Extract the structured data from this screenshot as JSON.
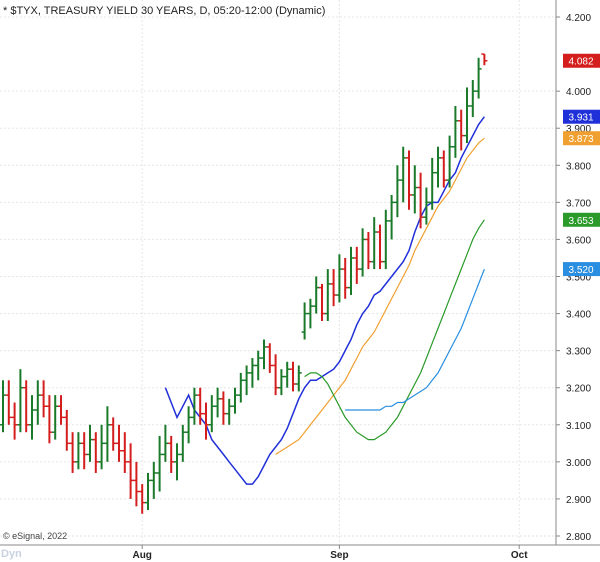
{
  "chart_data": {
    "type": "ohlc",
    "title": "* $TYX, TREASURY YIELD 30 YEARS, D, 05:20-12:00 (Dynamic)",
    "ylim": [
      2.8,
      4.2
    ],
    "y_ticks": [
      "4.200",
      "4.000",
      "3.900",
      "3.800",
      "3.700",
      "3.600",
      "3.500",
      "3.400",
      "3.300",
      "3.200",
      "3.100",
      "3.000",
      "2.900",
      "2.800"
    ],
    "x_ticks": [
      {
        "label": "Aug",
        "index": 24
      },
      {
        "label": "Sep",
        "index": 58
      },
      {
        "label": "Oct",
        "index": 89
      }
    ],
    "colors": {
      "up": "#1a7a2a",
      "down": "#d41e1e",
      "ma_blue": "#2030d8",
      "ma_orange": "#f0a030",
      "ma_green": "#2a9a2a",
      "ma_lightblue": "#2a8fe0"
    },
    "bars": [
      [
        3.1,
        3.22,
        3.08,
        3.18
      ],
      [
        3.18,
        3.22,
        3.1,
        3.12
      ],
      [
        3.12,
        3.16,
        3.06,
        3.1
      ],
      [
        3.1,
        3.25,
        3.08,
        3.2
      ],
      [
        3.2,
        3.22,
        3.08,
        3.1
      ],
      [
        3.1,
        3.18,
        3.06,
        3.14
      ],
      [
        3.14,
        3.22,
        3.1,
        3.18
      ],
      [
        3.18,
        3.22,
        3.12,
        3.15
      ],
      [
        3.15,
        3.18,
        3.05,
        3.08
      ],
      [
        3.08,
        3.18,
        3.06,
        3.15
      ],
      [
        3.15,
        3.18,
        3.1,
        3.12
      ],
      [
        3.12,
        3.14,
        3.03,
        3.05
      ],
      [
        3.05,
        3.08,
        2.97,
        3.0
      ],
      [
        3.0,
        3.08,
        2.98,
        3.05
      ],
      [
        3.05,
        3.08,
        2.98,
        3.02
      ],
      [
        3.02,
        3.1,
        3.0,
        3.06
      ],
      [
        3.06,
        3.08,
        2.97,
        3.0
      ],
      [
        3.0,
        3.1,
        2.98,
        3.05
      ],
      [
        3.05,
        3.15,
        3.0,
        3.1
      ],
      [
        3.1,
        3.12,
        3.03,
        3.05
      ],
      [
        3.05,
        3.1,
        3.0,
        3.03
      ],
      [
        3.03,
        3.08,
        2.97,
        3.0
      ],
      [
        3.0,
        3.05,
        2.9,
        2.95
      ],
      [
        2.95,
        3.0,
        2.88,
        2.92
      ],
      [
        2.92,
        2.94,
        2.86,
        2.89
      ],
      [
        2.89,
        2.97,
        2.87,
        2.95
      ],
      [
        2.95,
        3.0,
        2.9,
        2.97
      ],
      [
        2.97,
        3.07,
        2.92,
        3.02
      ],
      [
        3.02,
        3.1,
        3.0,
        3.05
      ],
      [
        3.05,
        3.07,
        2.97,
        3.0
      ],
      [
        3.0,
        3.05,
        2.95,
        3.02
      ],
      [
        3.02,
        3.1,
        3.0,
        3.08
      ],
      [
        3.08,
        3.15,
        3.05,
        3.12
      ],
      [
        3.12,
        3.2,
        3.1,
        3.18
      ],
      [
        3.18,
        3.2,
        3.1,
        3.13
      ],
      [
        3.13,
        3.16,
        3.06,
        3.1
      ],
      [
        3.1,
        3.18,
        3.08,
        3.15
      ],
      [
        3.15,
        3.2,
        3.12,
        3.17
      ],
      [
        3.17,
        3.19,
        3.1,
        3.13
      ],
      [
        3.13,
        3.17,
        3.1,
        3.15
      ],
      [
        3.15,
        3.2,
        3.13,
        3.18
      ],
      [
        3.18,
        3.24,
        3.16,
        3.22
      ],
      [
        3.22,
        3.26,
        3.18,
        3.24
      ],
      [
        3.24,
        3.28,
        3.2,
        3.26
      ],
      [
        3.26,
        3.3,
        3.22,
        3.28
      ],
      [
        3.28,
        3.33,
        3.25,
        3.31
      ],
      [
        3.31,
        3.32,
        3.24,
        3.26
      ],
      [
        3.26,
        3.29,
        3.18,
        3.2
      ],
      [
        3.2,
        3.25,
        3.18,
        3.23
      ],
      [
        3.23,
        3.27,
        3.2,
        3.25
      ],
      [
        3.25,
        3.27,
        3.19,
        3.21
      ],
      [
        3.21,
        3.26,
        3.19,
        3.24
      ],
      [
        3.35,
        3.43,
        3.33,
        3.4
      ],
      [
        3.4,
        3.44,
        3.36,
        3.42
      ],
      [
        3.42,
        3.5,
        3.4,
        3.47
      ],
      [
        3.47,
        3.48,
        3.38,
        3.4
      ],
      [
        3.4,
        3.52,
        3.38,
        3.48
      ],
      [
        3.48,
        3.52,
        3.42,
        3.45
      ],
      [
        3.45,
        3.56,
        3.43,
        3.52
      ],
      [
        3.52,
        3.55,
        3.44,
        3.47
      ],
      [
        3.47,
        3.58,
        3.45,
        3.55
      ],
      [
        3.55,
        3.58,
        3.48,
        3.52
      ],
      [
        3.52,
        3.63,
        3.5,
        3.6
      ],
      [
        3.6,
        3.62,
        3.52,
        3.54
      ],
      [
        3.54,
        3.66,
        3.52,
        3.62
      ],
      [
        3.62,
        3.64,
        3.52,
        3.54
      ],
      [
        3.54,
        3.68,
        3.52,
        3.65
      ],
      [
        3.65,
        3.72,
        3.6,
        3.7
      ],
      [
        3.7,
        3.8,
        3.66,
        3.76
      ],
      [
        3.76,
        3.85,
        3.7,
        3.82
      ],
      [
        3.82,
        3.84,
        3.68,
        3.72
      ],
      [
        3.72,
        3.8,
        3.67,
        3.74
      ],
      [
        3.74,
        3.78,
        3.63,
        3.66
      ],
      [
        3.66,
        3.74,
        3.64,
        3.7
      ],
      [
        3.7,
        3.82,
        3.68,
        3.78
      ],
      [
        3.78,
        3.85,
        3.74,
        3.82
      ],
      [
        3.82,
        3.84,
        3.74,
        3.76
      ],
      [
        3.76,
        3.88,
        3.74,
        3.85
      ],
      [
        3.85,
        3.96,
        3.82,
        3.92
      ],
      [
        3.92,
        3.95,
        3.84,
        3.88
      ],
      [
        3.88,
        4.01,
        3.86,
        3.96
      ],
      [
        3.96,
        4.03,
        3.93,
        4.0
      ],
      [
        4.0,
        4.09,
        3.98,
        4.06
      ],
      [
        4.1,
        4.1,
        4.07,
        4.082
      ]
    ],
    "series": [
      {
        "values": [
          3.2,
          3.16,
          3.12,
          3.15,
          3.18,
          3.14,
          3.12,
          3.1,
          3.06,
          3.04,
          3.02,
          3.0,
          2.98,
          2.96,
          2.94,
          2.94,
          2.96,
          2.99,
          3.02,
          3.04,
          3.06,
          3.09,
          3.13,
          3.17,
          3.2,
          3.22,
          3.22,
          3.23,
          3.24,
          3.25,
          3.27,
          3.3,
          3.33,
          3.37,
          3.4,
          3.42,
          3.45,
          3.46,
          3.48,
          3.5,
          3.52,
          3.54,
          3.57,
          3.62,
          3.66,
          3.69,
          3.7,
          3.7,
          3.73,
          3.76,
          3.78,
          3.82,
          3.85,
          3.88,
          3.91,
          3.931
        ]
      },
      {
        "values": [
          3.02,
          3.03,
          3.04,
          3.05,
          3.06,
          3.08,
          3.1,
          3.12,
          3.14,
          3.16,
          3.18,
          3.2,
          3.22,
          3.25,
          3.28,
          3.31,
          3.33,
          3.35,
          3.38,
          3.41,
          3.44,
          3.47,
          3.5,
          3.53,
          3.57,
          3.6,
          3.63,
          3.66,
          3.69,
          3.71,
          3.73,
          3.76,
          3.79,
          3.82,
          3.84,
          3.86,
          3.873
        ]
      },
      {
        "values": [
          3.23,
          3.24,
          3.24,
          3.23,
          3.21,
          3.18,
          3.15,
          3.12,
          3.1,
          3.08,
          3.07,
          3.06,
          3.06,
          3.07,
          3.08,
          3.1,
          3.12,
          3.15,
          3.18,
          3.21,
          3.24,
          3.28,
          3.32,
          3.36,
          3.4,
          3.44,
          3.48,
          3.52,
          3.56,
          3.6,
          3.63,
          3.653
        ]
      },
      {
        "values": [
          3.14,
          3.14,
          3.14,
          3.14,
          3.14,
          3.14,
          3.14,
          3.15,
          3.15,
          3.16,
          3.16,
          3.17,
          3.18,
          3.19,
          3.2,
          3.22,
          3.24,
          3.27,
          3.3,
          3.33,
          3.36,
          3.4,
          3.44,
          3.48,
          3.52
        ]
      }
    ],
    "last_values": {
      "price": "4.082",
      "ma_blue": "3.931",
      "ma_orange": "3.873",
      "ma_green": "3.653",
      "ma_lightblue": "3.520"
    },
    "grid": true,
    "copyright": "© eSignal, 2022",
    "watermark": "Dyn"
  }
}
